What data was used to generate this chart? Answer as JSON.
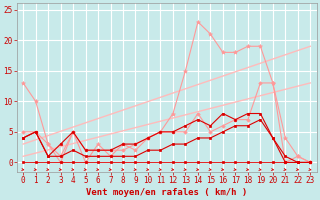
{
  "bg_color": "#c8eaea",
  "grid_color": "#ffffff",
  "xlabel": "Vent moyen/en rafales ( km/h )",
  "xlabel_color": "#cc0000",
  "xlabel_fontsize": 6.5,
  "tick_color": "#cc0000",
  "tick_fontsize": 5.5,
  "xlim": [
    -0.5,
    23.5
  ],
  "ylim": [
    -1.5,
    26
  ],
  "yticks": [
    0,
    5,
    10,
    15,
    20,
    25
  ],
  "xticks": [
    0,
    1,
    2,
    3,
    4,
    5,
    6,
    7,
    8,
    9,
    10,
    11,
    12,
    13,
    14,
    15,
    16,
    17,
    18,
    19,
    20,
    21,
    22,
    23
  ],
  "lines": [
    {
      "x": [
        0,
        1,
        2,
        3,
        4,
        5,
        6,
        7,
        8,
        9,
        10,
        11,
        12,
        13,
        14,
        15,
        16,
        17,
        18,
        19,
        20,
        21,
        22,
        23
      ],
      "y": [
        4,
        5,
        1,
        3,
        5,
        2,
        2,
        2,
        3,
        3,
        4,
        5,
        5,
        6,
        7,
        6,
        8,
        7,
        8,
        8,
        4,
        1,
        0,
        0
      ],
      "color": "#dd0000",
      "lw": 0.8,
      "marker": "s",
      "ms": 1.8,
      "zorder": 4
    },
    {
      "x": [
        0,
        1,
        2,
        3,
        4,
        5,
        6,
        7,
        8,
        9,
        10,
        11,
        12,
        13,
        14,
        15,
        16,
        17,
        18,
        19,
        20,
        21,
        22,
        23
      ],
      "y": [
        4,
        5,
        1,
        1,
        2,
        1,
        1,
        1,
        1,
        1,
        2,
        2,
        3,
        3,
        4,
        4,
        5,
        6,
        6,
        7,
        4,
        0,
        0,
        0
      ],
      "color": "#dd0000",
      "lw": 0.8,
      "marker": "s",
      "ms": 1.8,
      "zorder": 4
    },
    {
      "x": [
        0,
        1,
        2,
        3,
        4,
        5,
        6,
        7,
        8,
        9,
        10,
        11,
        12,
        13,
        14,
        15,
        16,
        17,
        18,
        19,
        20,
        21,
        22,
        23
      ],
      "y": [
        13,
        10,
        3,
        0,
        5,
        0,
        3,
        1,
        3,
        2,
        4,
        5,
        8,
        15,
        23,
        21,
        18,
        18,
        19,
        19,
        13,
        4,
        1,
        0
      ],
      "color": "#ff9999",
      "lw": 0.8,
      "marker": "*",
      "ms": 3.0,
      "zorder": 3
    },
    {
      "x": [
        0,
        1,
        2,
        3,
        4,
        5,
        6,
        7,
        8,
        9,
        10,
        11,
        12,
        13,
        14,
        15,
        16,
        17,
        18,
        19,
        20,
        21,
        22,
        23
      ],
      "y": [
        5,
        5,
        3,
        1,
        5,
        2,
        2,
        2,
        2,
        3,
        4,
        5,
        5,
        5,
        8,
        5,
        6,
        7,
        7,
        13,
        13,
        0,
        1,
        0
      ],
      "color": "#ff9999",
      "lw": 0.8,
      "marker": "D",
      "ms": 1.8,
      "zorder": 3
    },
    {
      "x": [
        0,
        23
      ],
      "y": [
        3,
        19
      ],
      "color": "#ffbbbb",
      "lw": 1.0,
      "marker": null,
      "ms": 0,
      "zorder": 2
    },
    {
      "x": [
        0,
        23
      ],
      "y": [
        1,
        13
      ],
      "color": "#ffbbbb",
      "lw": 1.0,
      "marker": null,
      "ms": 0,
      "zorder": 2
    },
    {
      "x": [
        0,
        1,
        2,
        3,
        4,
        5,
        6,
        7,
        8,
        9,
        10,
        11,
        12,
        13,
        14,
        15,
        16,
        17,
        18,
        19,
        20,
        21,
        22,
        23
      ],
      "y": [
        0,
        0,
        0,
        0,
        0,
        0,
        0,
        0,
        0,
        0,
        0,
        0,
        0,
        0,
        0,
        0,
        0,
        0,
        0,
        0,
        0,
        0,
        0,
        0
      ],
      "color": "#dd0000",
      "lw": 0.6,
      "marker": "s",
      "ms": 1.5,
      "zorder": 4
    }
  ]
}
